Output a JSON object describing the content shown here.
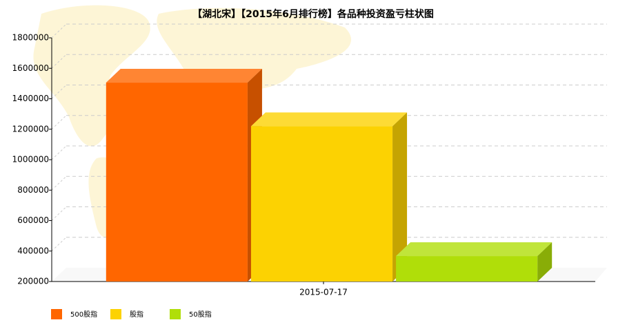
{
  "chart_data": {
    "type": "bar3d",
    "title": "【湖北宋】【2015年6月排行榜】各品种投资盈亏柱状图",
    "categories": [
      "2015-07-17"
    ],
    "series": [
      {
        "name": "500股指",
        "color": "#ff6600",
        "values": [
          1506000
        ]
      },
      {
        "name": "股指",
        "color": "#fcd202",
        "values": [
          1220000
        ]
      },
      {
        "name": "50股指",
        "color": "#b0de09",
        "values": [
          367000
        ]
      }
    ],
    "ylim": [
      200000,
      1800000
    ],
    "yticks": [
      200000,
      400000,
      600000,
      800000,
      1000000,
      1200000,
      1400000,
      1600000,
      1800000
    ],
    "grid": true,
    "legend": "bottom-left"
  }
}
